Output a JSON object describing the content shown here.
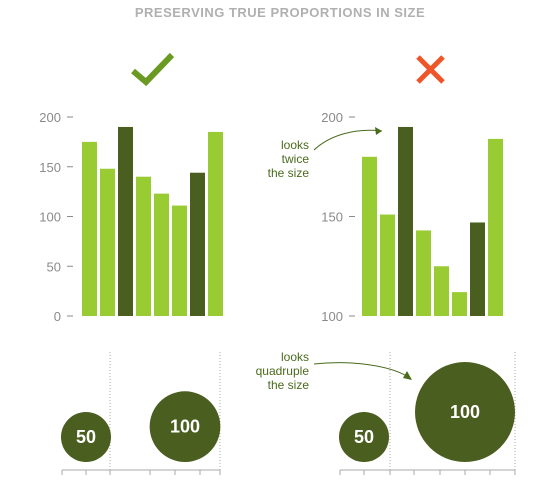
{
  "title": "PRESERVING TRUE PROPORTIONS IN SIZE",
  "colors": {
    "light": "#99cc33",
    "dark": "#4a5e1f",
    "good": "#6a9a22",
    "bad": "#f0552a",
    "tick": "#8a8a8a",
    "annotation": "#4a6a1c"
  },
  "panels": [
    {
      "verdict": "correct",
      "mark_icon": "check-icon"
    },
    {
      "verdict": "incorrect",
      "mark_icon": "cross-icon"
    }
  ],
  "chart_data": [
    {
      "type": "bar",
      "panel": "left",
      "ylim": [
        0,
        200
      ],
      "yticks": [
        0,
        50,
        100,
        150,
        200
      ],
      "values": [
        175,
        148,
        190,
        140,
        123,
        111,
        144,
        185
      ],
      "shades": [
        "light",
        "light",
        "dark",
        "light",
        "light",
        "light",
        "dark",
        "light"
      ]
    },
    {
      "type": "bar",
      "panel": "right",
      "ylim": [
        100,
        200
      ],
      "yticks": [
        100,
        150,
        200
      ],
      "values": [
        180,
        151,
        195,
        143,
        125,
        112,
        147,
        189
      ],
      "shades": [
        "light",
        "light",
        "dark",
        "light",
        "light",
        "light",
        "dark",
        "light"
      ],
      "annotation": [
        "looks",
        "twice",
        "the size"
      ]
    },
    {
      "type": "scatter",
      "panel": "left",
      "encoding": "bubble-area",
      "points": [
        {
          "label": "50",
          "value": 50
        },
        {
          "label": "100",
          "value": 100
        }
      ]
    },
    {
      "type": "scatter",
      "panel": "right",
      "encoding": "bubble-radius",
      "points": [
        {
          "label": "50",
          "value": 50
        },
        {
          "label": "100",
          "value": 100
        }
      ],
      "annotation": [
        "looks",
        "quadruple",
        "the size"
      ]
    }
  ]
}
